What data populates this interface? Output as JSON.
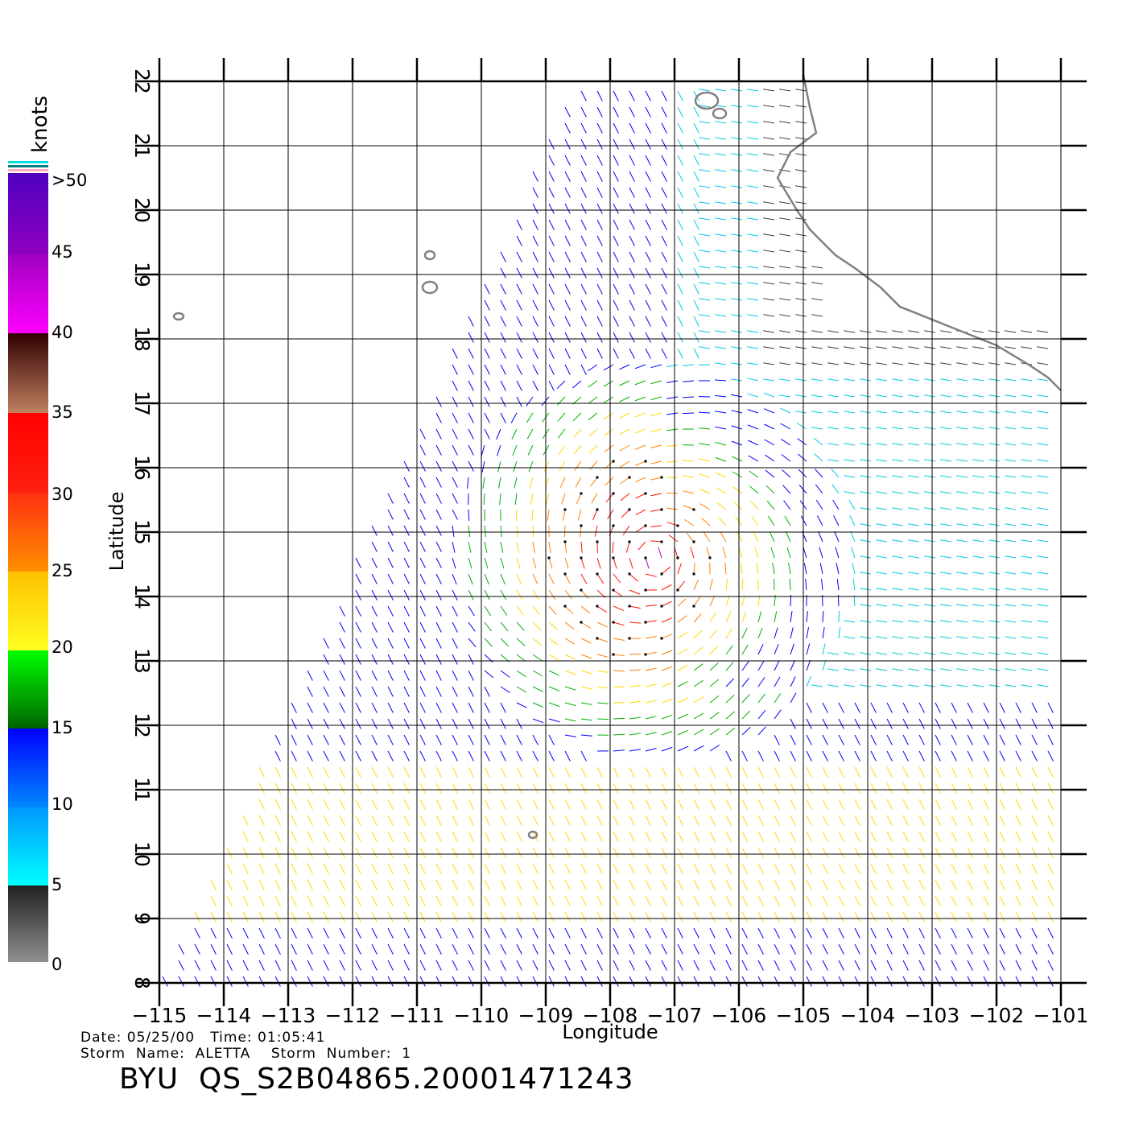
{
  "map": {
    "lon_range": [
      -115,
      -101
    ],
    "lat_range": [
      8,
      22
    ],
    "lon_ticks": [
      "−115",
      "−114",
      "−113",
      "−112",
      "−111",
      "−110",
      "−109",
      "−108",
      "−107",
      "−106",
      "−105",
      "−104",
      "−103",
      "−102",
      "−101"
    ],
    "lat_ticks": [
      "8",
      "9",
      "10",
      "11",
      "12",
      "13",
      "14",
      "15",
      "16",
      "17",
      "18",
      "19",
      "20",
      "21",
      "22"
    ],
    "xlabel": "Longitude",
    "ylabel": "Latitude",
    "grid": true,
    "storm_center": {
      "lon": -107.3,
      "lat": 14.6
    },
    "colors": {
      "land_outline": "#808080",
      "grid": "#000000"
    }
  },
  "legend": {
    "title": "knots",
    "stops": [
      {
        "value": "0",
        "color": "#8a8a8a"
      },
      {
        "value": "5",
        "color": "#00e8ff"
      },
      {
        "value": "10",
        "color": "#0090ff"
      },
      {
        "value": "15",
        "color": "#0000ff"
      },
      {
        "value": "20",
        "color": "#00ff00"
      },
      {
        "value": "25",
        "color": "#ffd000"
      },
      {
        "value": "30",
        "color": "#ff6000"
      },
      {
        "value": "35",
        "color": "#ff1010"
      },
      {
        "value": "40",
        "color": "#3a0808"
      },
      {
        "value": "45",
        "color": "#a000c0"
      },
      {
        "value": ">50",
        "color": "#5a00c0"
      }
    ]
  },
  "info": {
    "date_line": "Date: 05/25/00   Time: 01:05:41",
    "storm_line": "Storm  Name:  ALETTA    Storm  Number:  1",
    "product_id": "BYU  QS_S2B04865.20001471243"
  }
}
